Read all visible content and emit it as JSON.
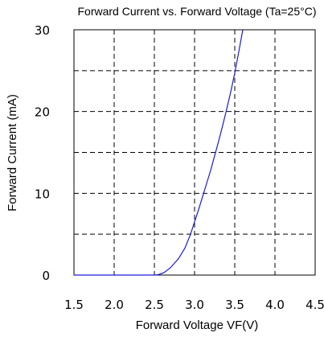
{
  "chart_data": {
    "type": "line",
    "title": "Forward Current vs. Forward Voltage (Ta=25°C)",
    "xlabel": "Forward Voltage VF(V)",
    "ylabel": "Forward Current (mA)",
    "xlim": [
      1.5,
      4.5
    ],
    "ylim": [
      0,
      30
    ],
    "x_ticks": [
      "1.5",
      "2.0",
      "2.5",
      "3.0",
      "3.5",
      "4.0",
      "4.5"
    ],
    "y_ticks": [
      "0",
      "10",
      "20",
      "30"
    ],
    "x_grid": [
      2.0,
      2.5,
      3.0,
      3.5,
      4.0
    ],
    "y_grid": [
      5,
      10,
      15,
      20,
      25
    ],
    "grid": true,
    "series": [
      {
        "color": "#1a1adb",
        "x": [
          1.5,
          2.0,
          2.5,
          2.55,
          2.62,
          2.7,
          2.8,
          2.88,
          2.95,
          3.0,
          3.05,
          3.1,
          3.15,
          3.2,
          3.25,
          3.3,
          3.35,
          3.4,
          3.45,
          3.5,
          3.55,
          3.6
        ],
        "y": [
          0,
          0,
          0,
          0.05,
          0.3,
          0.9,
          2.0,
          3.3,
          5.0,
          6.5,
          8.0,
          9.6,
          11.2,
          12.8,
          14.6,
          16.4,
          18.3,
          20.3,
          22.4,
          24.7,
          27.3,
          30
        ]
      }
    ]
  }
}
